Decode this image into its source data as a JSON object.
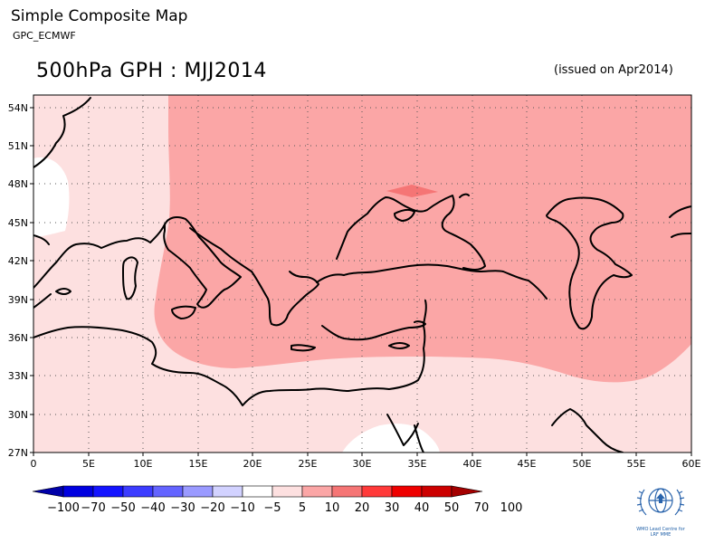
{
  "header": {
    "title": "Simple Composite Map",
    "subtitle": "GPC_ECMWF",
    "map_title": "500hPa GPH : MJJ2014",
    "issued": "(issued on Apr2014)"
  },
  "map": {
    "lat_labels": [
      "54N",
      "51N",
      "48N",
      "45N",
      "42N",
      "39N",
      "36N",
      "33N",
      "30N",
      "27N"
    ],
    "lon_labels": [
      "0",
      "5E",
      "10E",
      "15E",
      "20E",
      "25E",
      "30E",
      "35E",
      "40E",
      "45E",
      "50E",
      "55E",
      "60E"
    ],
    "region": {
      "lon_min": 0,
      "lon_max": 60,
      "lat_min": 27,
      "lat_max": 55
    },
    "fill_colors": {
      "white": "#ffffff",
      "light": "#fde0e0",
      "mid": "#fba6a6",
      "strong": "#f57575"
    }
  },
  "legend": {
    "labels": [
      "−100",
      "−70",
      "−50",
      "−40",
      "−30",
      "−20",
      "−10",
      "−5",
      "5",
      "10",
      "20",
      "30",
      "40",
      "50",
      "70",
      "100"
    ],
    "colors": [
      "#0000a8",
      "#0000e0",
      "#1414ff",
      "#3c3cff",
      "#6464ff",
      "#9a9aff",
      "#d2d2ff",
      "#ffffff",
      "#fde0e0",
      "#fba6a6",
      "#f57575",
      "#ff3a3a",
      "#ee0000",
      "#cc0000",
      "#a40000"
    ]
  },
  "logo": {
    "icon": "wmo-emblem-icon",
    "text_lines": [
      "WMO Lead Centre for",
      "LRF MME"
    ]
  }
}
